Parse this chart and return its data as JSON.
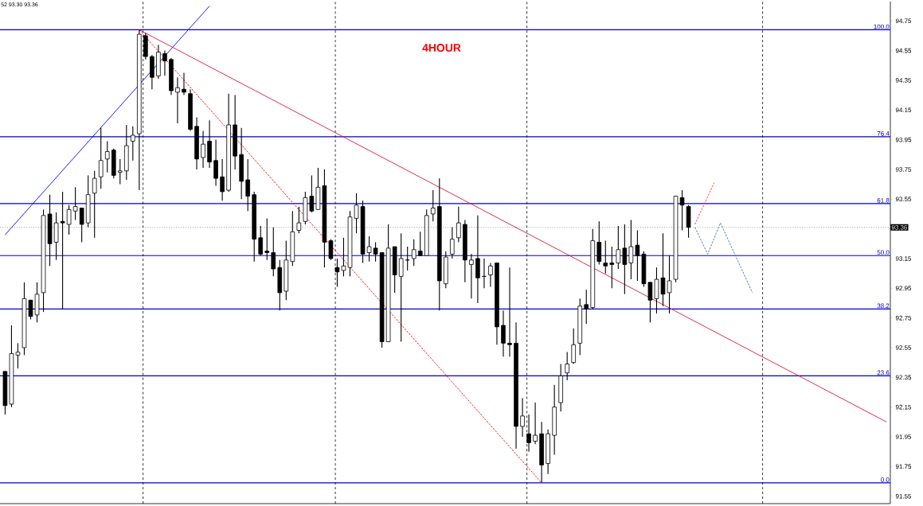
{
  "chart_data": {
    "type": "candlestick",
    "title": "4HOUR",
    "annotations": [
      "52 93.30 93.36",
      {
        "text": "100.0",
        "y": 94.69
      },
      {
        "text": "76.4",
        "y": 93.97
      },
      {
        "text": "61.8",
        "y": 93.52
      },
      {
        "text": "50.0",
        "y": 93.17
      },
      {
        "text": "38.2",
        "y": 92.81
      },
      {
        "text": "23.6",
        "y": 92.36
      },
      {
        "text": "0.0",
        "y": 91.64
      }
    ],
    "categories": [
      null,
      null,
      null,
      null,
      null,
      null,
      null,
      null,
      null,
      null,
      null,
      null,
      null,
      null,
      null,
      null,
      null,
      null,
      null,
      null,
      null,
      null,
      null,
      null,
      null,
      null,
      null,
      null,
      null,
      null,
      null,
      null,
      null,
      null,
      null,
      null,
      null,
      null,
      null,
      null,
      null,
      null,
      null,
      null,
      null,
      null,
      null,
      null,
      null,
      null,
      null,
      null,
      null,
      null,
      null,
      null,
      null,
      null,
      null,
      null,
      null,
      null,
      null,
      null,
      null,
      null,
      null,
      null,
      null,
      null,
      null,
      null,
      null,
      null,
      null,
      null,
      null,
      null,
      null,
      null,
      null,
      null,
      null,
      null,
      null,
      null,
      null,
      null,
      null,
      null,
      null,
      null,
      null,
      null,
      null,
      null,
      null,
      null,
      null,
      null,
      null,
      null,
      null,
      null,
      null,
      null,
      null,
      null,
      null,
      null,
      null,
      null,
      null,
      null,
      null,
      null,
      null,
      null,
      null,
      null,
      null,
      null,
      null,
      null,
      null,
      null,
      null,
      null,
      null,
      null,
      null,
      null,
      null,
      null,
      null,
      null,
      null,
      null,
      null
    ],
    "ohlc": [
      [
        92.39,
        92.39,
        92.1,
        92.16
      ],
      [
        92.17,
        92.7,
        92.15,
        92.51
      ],
      [
        92.5,
        92.58,
        92.41,
        92.52
      ],
      [
        92.55,
        92.99,
        92.5,
        92.88
      ],
      [
        92.87,
        92.87,
        92.74,
        92.76
      ],
      [
        92.77,
        92.99,
        92.72,
        92.91
      ],
      [
        92.92,
        93.48,
        92.79,
        93.44
      ],
      [
        93.45,
        93.58,
        93.1,
        93.25
      ],
      [
        93.26,
        93.46,
        93.14,
        93.39
      ],
      [
        93.4,
        93.6,
        92.81,
        93.39
      ],
      [
        93.38,
        93.51,
        93.31,
        93.48
      ],
      [
        93.47,
        93.63,
        93.41,
        93.5
      ],
      [
        93.49,
        93.49,
        93.26,
        93.38
      ],
      [
        93.39,
        93.71,
        93.36,
        93.58
      ],
      [
        93.59,
        93.74,
        93.29,
        93.69
      ],
      [
        93.7,
        94.03,
        93.62,
        93.81
      ],
      [
        93.82,
        93.94,
        93.73,
        93.87
      ],
      [
        93.88,
        93.89,
        93.69,
        93.71
      ],
      [
        93.73,
        93.82,
        93.65,
        93.74
      ],
      [
        93.74,
        94.05,
        93.68,
        93.91
      ],
      [
        93.94,
        94.04,
        93.81,
        93.98
      ],
      [
        93.99,
        94.69,
        93.61,
        94.66
      ],
      [
        94.65,
        94.67,
        94.49,
        94.51
      ],
      [
        94.51,
        94.52,
        94.29,
        94.37
      ],
      [
        94.38,
        94.59,
        94.36,
        94.54
      ],
      [
        94.53,
        94.55,
        94.38,
        94.48
      ],
      [
        94.49,
        94.5,
        94.25,
        94.28
      ],
      [
        94.27,
        94.37,
        94.06,
        94.3
      ],
      [
        94.29,
        94.4,
        94.25,
        94.27
      ],
      [
        94.26,
        94.29,
        94.01,
        94.02
      ],
      [
        94.04,
        94.1,
        93.75,
        93.82
      ],
      [
        93.83,
        94.01,
        93.76,
        93.92
      ],
      [
        93.94,
        94.08,
        93.76,
        93.8
      ],
      [
        93.81,
        93.95,
        93.64,
        93.69
      ],
      [
        93.7,
        93.82,
        93.54,
        93.6
      ],
      [
        93.61,
        94.26,
        93.6,
        94.05
      ],
      [
        94.05,
        94.25,
        93.75,
        93.84
      ],
      [
        93.85,
        94.03,
        93.55,
        93.67
      ],
      [
        93.68,
        93.82,
        93.47,
        93.57
      ],
      [
        93.58,
        93.6,
        93.13,
        93.28
      ],
      [
        93.29,
        93.37,
        93.17,
        93.18
      ],
      [
        93.2,
        93.42,
        93.14,
        93.19
      ],
      [
        93.19,
        93.36,
        93.03,
        93.08
      ],
      [
        93.09,
        93.14,
        92.8,
        92.92
      ],
      [
        92.93,
        93.27,
        92.87,
        93.14
      ],
      [
        93.13,
        93.47,
        93.1,
        93.33
      ],
      [
        93.34,
        93.5,
        93.32,
        93.39
      ],
      [
        93.4,
        93.6,
        93.38,
        93.56
      ],
      [
        93.57,
        93.71,
        93.46,
        93.47
      ],
      [
        93.48,
        93.76,
        93.48,
        93.63
      ],
      [
        93.64,
        93.75,
        93.09,
        93.26
      ],
      [
        93.27,
        93.28,
        93.14,
        93.15
      ],
      [
        93.09,
        93.15,
        92.96,
        93.06
      ],
      [
        93.07,
        93.29,
        93.03,
        93.1
      ],
      [
        93.09,
        93.47,
        93.03,
        93.43
      ],
      [
        93.42,
        93.59,
        93.32,
        93.51
      ],
      [
        93.5,
        93.54,
        93.12,
        93.18
      ],
      [
        93.19,
        93.3,
        93.13,
        93.23
      ],
      [
        93.22,
        93.26,
        93.13,
        93.18
      ],
      [
        93.19,
        93.19,
        92.55,
        92.59
      ],
      [
        92.59,
        93.38,
        92.59,
        93.22
      ],
      [
        93.23,
        93.23,
        92.92,
        93.04
      ],
      [
        93.03,
        93.32,
        92.59,
        93.15
      ],
      [
        93.14,
        93.23,
        93.07,
        93.14
      ],
      [
        93.15,
        93.28,
        93.1,
        93.21
      ],
      [
        93.2,
        93.33,
        93.17,
        93.17
      ],
      [
        93.17,
        93.48,
        93.17,
        93.44
      ],
      [
        93.45,
        93.61,
        93.4,
        93.49
      ],
      [
        93.5,
        93.69,
        92.8,
        93.0
      ],
      [
        92.98,
        93.2,
        92.95,
        93.16
      ],
      [
        93.18,
        93.36,
        93.15,
        93.28
      ],
      [
        93.29,
        93.5,
        93.26,
        93.39
      ],
      [
        93.38,
        93.41,
        92.99,
        93.14
      ],
      [
        93.11,
        93.18,
        92.88,
        93.14
      ],
      [
        93.15,
        93.44,
        92.85,
        93.02
      ],
      [
        93.03,
        93.15,
        92.95,
        93.03
      ],
      [
        93.04,
        93.12,
        92.96,
        93.1
      ],
      [
        93.12,
        93.12,
        92.57,
        92.69
      ],
      [
        92.7,
        92.8,
        92.49,
        92.58
      ],
      [
        92.58,
        93.09,
        92.49,
        92.57
      ],
      [
        92.58,
        92.72,
        91.87,
        92.02
      ],
      [
        92.02,
        92.21,
        91.95,
        92.09
      ],
      [
        91.97,
        92.1,
        91.85,
        91.91
      ],
      [
        91.92,
        92.18,
        91.9,
        91.96
      ],
      [
        91.97,
        92.05,
        91.64,
        91.76
      ],
      [
        91.77,
        92.0,
        91.7,
        91.97
      ],
      [
        91.96,
        92.3,
        91.83,
        92.15
      ],
      [
        92.18,
        92.44,
        92.12,
        92.36
      ],
      [
        92.38,
        92.52,
        92.33,
        92.44
      ],
      [
        92.45,
        92.68,
        92.44,
        92.57
      ],
      [
        92.58,
        92.88,
        92.5,
        92.83
      ],
      [
        92.84,
        92.94,
        92.71,
        92.81
      ],
      [
        92.82,
        93.35,
        92.81,
        93.27
      ],
      [
        93.26,
        93.4,
        93.11,
        93.13
      ],
      [
        93.12,
        93.27,
        93.05,
        93.1
      ],
      [
        93.12,
        93.23,
        92.95,
        93.11
      ],
      [
        93.12,
        93.37,
        93.08,
        93.21
      ],
      [
        93.22,
        93.38,
        92.91,
        93.11
      ],
      [
        93.12,
        93.41,
        93.01,
        93.23
      ],
      [
        93.24,
        93.34,
        93.0,
        93.17
      ],
      [
        93.18,
        93.2,
        92.96,
        92.98
      ],
      [
        92.99,
        92.99,
        92.72,
        92.87
      ],
      [
        92.88,
        93.09,
        92.78,
        93.01
      ],
      [
        93.02,
        93.32,
        92.83,
        92.91
      ],
      [
        92.92,
        93.17,
        92.78,
        93.0
      ],
      [
        93.01,
        93.57,
        92.99,
        93.57
      ],
      [
        93.56,
        93.61,
        93.34,
        93.51
      ],
      [
        93.5,
        93.51,
        93.29,
        93.36
      ],
      null,
      null,
      null,
      null,
      null,
      null,
      null,
      null,
      null,
      null,
      null,
      null,
      null,
      null,
      null,
      null,
      null,
      null,
      null,
      null,
      null,
      null,
      null,
      null,
      null,
      null,
      null,
      null,
      null,
      null,
      null
    ],
    "series": [
      {
        "type": "line",
        "color": "#0000ff",
        "values": [
          93.31,
          null,
          null,
          null,
          null,
          null,
          null,
          null,
          null,
          null,
          null,
          null,
          null,
          null,
          null,
          null,
          null,
          null,
          null,
          null,
          null,
          null,
          null,
          null,
          null,
          null,
          null,
          null,
          null,
          null,
          null,
          null,
          94.85,
          null,
          null,
          null,
          null,
          null,
          null,
          null,
          null,
          null,
          null,
          null,
          null,
          null,
          null,
          null,
          null,
          null,
          null,
          null,
          null,
          null,
          null,
          null,
          null,
          null,
          null,
          null,
          null,
          null,
          null,
          null,
          null,
          null,
          null,
          null,
          null,
          null,
          null,
          null,
          null,
          null,
          null,
          null,
          null,
          null,
          null,
          null,
          null,
          null,
          null,
          null,
          null,
          null,
          null,
          null,
          null,
          null,
          null,
          null,
          null,
          null,
          null,
          null,
          null,
          null,
          null,
          null,
          null,
          null,
          null,
          null,
          null,
          null,
          null,
          null,
          null,
          null,
          null,
          null,
          null,
          null,
          null,
          null,
          null,
          null,
          null,
          null,
          null,
          null,
          null,
          null,
          null,
          null,
          null,
          null,
          null,
          null,
          null,
          null,
          null,
          null,
          null,
          null,
          null,
          null,
          null
        ]
      },
      {
        "type": "line",
        "color": "#dc143c",
        "values": [
          null,
          null,
          null,
          null,
          null,
          null,
          null,
          null,
          null,
          null,
          null,
          null,
          null,
          null,
          null,
          null,
          null,
          null,
          null,
          null,
          null,
          94.69,
          null,
          null,
          null,
          null,
          null,
          null,
          null,
          null,
          null,
          null,
          null,
          null,
          null,
          null,
          null,
          null,
          null,
          null,
          null,
          null,
          null,
          null,
          null,
          null,
          null,
          null,
          null,
          null,
          null,
          null,
          null,
          null,
          null,
          null,
          null,
          null,
          null,
          null,
          null,
          null,
          null,
          null,
          null,
          null,
          null,
          null,
          null,
          null,
          null,
          null,
          null,
          null,
          null,
          null,
          null,
          null,
          null,
          null,
          null,
          null,
          null,
          null,
          null,
          null,
          null,
          null,
          null,
          null,
          null,
          null,
          null,
          null,
          null,
          null,
          null,
          null,
          null,
          null,
          null,
          null,
          null,
          null,
          null,
          null,
          null,
          null,
          null,
          null,
          null,
          null,
          null,
          null,
          null,
          null,
          null,
          null,
          null,
          null,
          null,
          null,
          null,
          null,
          null,
          null,
          null,
          null,
          null,
          null,
          null,
          null,
          null,
          null,
          null,
          null,
          null,
          null,
          92.05
        ]
      },
      {
        "type": "line",
        "color": "#ff0000",
        "line_style": "dashed",
        "values": [
          null,
          null,
          null,
          null,
          null,
          null,
          null,
          null,
          null,
          null,
          null,
          null,
          null,
          null,
          null,
          null,
          null,
          null,
          null,
          null,
          null,
          94.69,
          null,
          null,
          null,
          null,
          null,
          null,
          null,
          null,
          null,
          null,
          null,
          null,
          null,
          null,
          null,
          null,
          null,
          null,
          null,
          null,
          null,
          null,
          null,
          null,
          null,
          null,
          null,
          null,
          null,
          null,
          null,
          null,
          null,
          null,
          null,
          null,
          null,
          null,
          null,
          null,
          null,
          null,
          null,
          null,
          null,
          null,
          null,
          null,
          null,
          null,
          null,
          null,
          null,
          null,
          null,
          null,
          null,
          null,
          null,
          null,
          null,
          null,
          91.64,
          null,
          null,
          null,
          null,
          null,
          null,
          null,
          null,
          null,
          null,
          null,
          null,
          null,
          null,
          null,
          null,
          null,
          null,
          null,
          null,
          null,
          null,
          null,
          null,
          null,
          null,
          null,
          null,
          null,
          null,
          null,
          null,
          null,
          null,
          null,
          null,
          null,
          null,
          null,
          null,
          null,
          null,
          null,
          null,
          null,
          null,
          null,
          null,
          null,
          null,
          null,
          null,
          null,
          null
        ]
      },
      {
        "type": "line",
        "color": "#ff3030",
        "line_style": "dashed",
        "values": [
          null,
          null,
          null,
          null,
          null,
          null,
          null,
          null,
          null,
          null,
          null,
          null,
          null,
          null,
          null,
          null,
          null,
          null,
          null,
          null,
          null,
          null,
          null,
          null,
          null,
          null,
          null,
          null,
          null,
          null,
          null,
          null,
          null,
          null,
          null,
          null,
          null,
          null,
          null,
          null,
          null,
          null,
          null,
          null,
          null,
          null,
          null,
          null,
          null,
          null,
          null,
          null,
          null,
          null,
          null,
          null,
          null,
          null,
          null,
          null,
          null,
          null,
          null,
          null,
          null,
          null,
          null,
          null,
          null,
          null,
          null,
          null,
          null,
          null,
          null,
          null,
          null,
          null,
          null,
          null,
          null,
          null,
          null,
          null,
          null,
          null,
          null,
          null,
          null,
          null,
          null,
          null,
          null,
          null,
          null,
          null,
          null,
          null,
          null,
          null,
          null,
          null,
          null,
          null,
          null,
          null,
          null,
          null,
          93.38,
          null,
          null,
          93.66,
          null,
          null,
          null,
          null,
          null,
          null,
          null,
          null,
          null,
          null,
          null,
          null,
          null,
          null,
          null,
          null,
          null,
          null,
          null,
          null,
          null,
          null,
          null,
          null,
          null,
          null,
          null
        ]
      },
      {
        "type": "line",
        "color": "#4a6fa5",
        "line_style": "dashed",
        "values": [
          null,
          null,
          null,
          null,
          null,
          null,
          null,
          null,
          null,
          null,
          null,
          null,
          null,
          null,
          null,
          null,
          null,
          null,
          null,
          null,
          null,
          null,
          null,
          null,
          null,
          null,
          null,
          null,
          null,
          null,
          null,
          null,
          null,
          null,
          null,
          null,
          null,
          null,
          null,
          null,
          null,
          null,
          null,
          null,
          null,
          null,
          null,
          null,
          null,
          null,
          null,
          null,
          null,
          null,
          null,
          null,
          null,
          null,
          null,
          null,
          null,
          null,
          null,
          null,
          null,
          null,
          null,
          null,
          null,
          null,
          null,
          null,
          null,
          null,
          null,
          null,
          null,
          null,
          null,
          null,
          null,
          null,
          null,
          null,
          null,
          null,
          null,
          null,
          null,
          null,
          null,
          null,
          null,
          null,
          null,
          null,
          null,
          null,
          null,
          null,
          null,
          null,
          null,
          null,
          null,
          null,
          null,
          null,
          93.36,
          null,
          93.18,
          null,
          93.39,
          null,
          null,
          null,
          null,
          92.92,
          null,
          null,
          null,
          null,
          null,
          null,
          null,
          null,
          null,
          null,
          null,
          null,
          null,
          null,
          null,
          null,
          null,
          null,
          null,
          null,
          null
        ]
      }
    ],
    "ylim": [
      91.5,
      94.88
    ],
    "yticks": [
      91.55,
      91.75,
      91.95,
      92.15,
      92.35,
      92.55,
      92.75,
      92.95,
      93.15,
      {
        "value": 93.35,
        "label": null
      },
      93.55,
      93.75,
      93.95,
      94.15,
      94.35,
      94.55,
      94.75
    ],
    "tick_labels": "y",
    "ref_lines": [
      {
        "axis": "y",
        "value": 94.69,
        "color": "#0000cc"
      },
      {
        "axis": "y",
        "value": 93.97,
        "color": "#0000cc"
      },
      {
        "axis": "y",
        "value": 93.52,
        "color": "#0000cc"
      },
      {
        "axis": "y",
        "value": 93.17,
        "color": "#0000cc"
      },
      {
        "axis": "y",
        "value": 92.81,
        "color": "#0000cc"
      },
      {
        "axis": "y",
        "value": 92.36,
        "color": "#0000cc"
      },
      {
        "axis": "y",
        "value": 91.64,
        "color": "#0000cc"
      },
      {
        "axis": "y",
        "value": 93.36,
        "label": "93.36",
        "color": "#a0a0a0",
        "line_style": "dotted"
      }
    ]
  }
}
